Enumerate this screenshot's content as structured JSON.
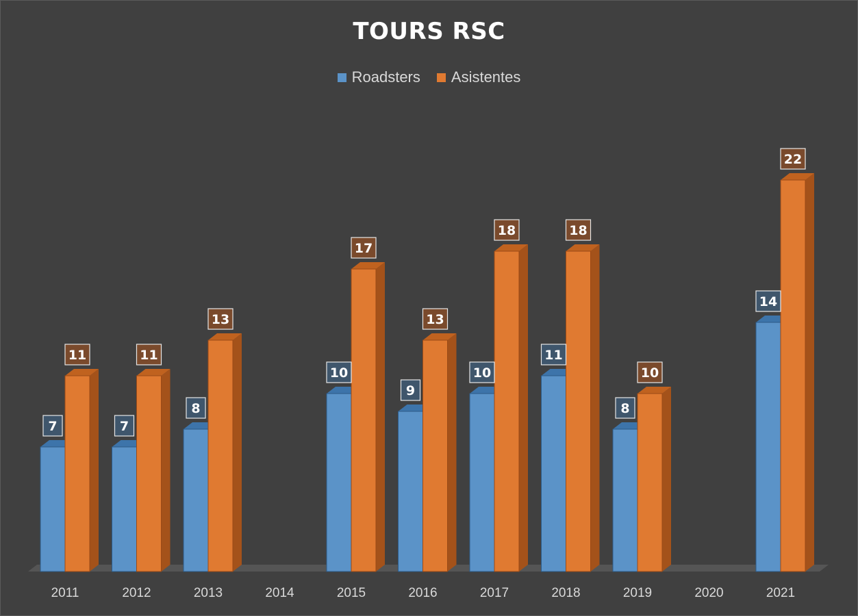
{
  "chart_data": {
    "type": "bar",
    "title": "TOURS RSC",
    "categories": [
      "2011",
      "2012",
      "2013",
      "2014",
      "2015",
      "2016",
      "2017",
      "2018",
      "2019",
      "2020",
      "2021"
    ],
    "series": [
      {
        "name": "Roadsters",
        "values": [
          7,
          7,
          8,
          null,
          10,
          9,
          10,
          11,
          8,
          null,
          14
        ]
      },
      {
        "name": "Asistentes",
        "values": [
          11,
          11,
          13,
          null,
          17,
          13,
          18,
          18,
          10,
          null,
          22
        ]
      }
    ],
    "ylim": [
      0,
      22
    ],
    "grid": false,
    "legend_position": "top",
    "data_labels": true,
    "colors": {
      "background": "#404040",
      "Roadsters": "#5b93c8",
      "Asistentes": "#e07a31"
    }
  }
}
